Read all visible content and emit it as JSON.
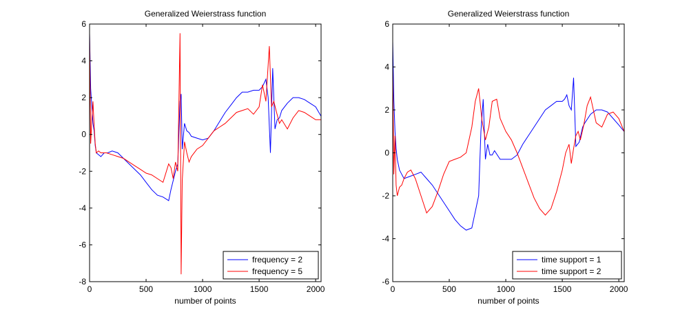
{
  "chart_data": [
    {
      "type": "line",
      "title": "Generalized Weierstrass function",
      "xlabel": "number of points",
      "ylabel": "",
      "xlim": [
        0,
        2048
      ],
      "ylim": [
        -8,
        6
      ],
      "xticks": [
        "0",
        "500",
        "1000",
        "1500",
        "2000"
      ],
      "yticks": [
        "6",
        "4",
        "2",
        "0",
        "-2",
        "-4",
        "-6",
        "-8"
      ],
      "legend": "bottom-right",
      "grid": false,
      "series": [
        {
          "name": "frequency = 2",
          "color": "#0000ff",
          "x": [
            0,
            10,
            20,
            30,
            40,
            50,
            60,
            80,
            100,
            130,
            160,
            200,
            250,
            300,
            350,
            400,
            450,
            500,
            550,
            600,
            650,
            700,
            720,
            740,
            760,
            780,
            800,
            810,
            820,
            840,
            860,
            880,
            900,
            950,
            1000,
            1050,
            1100,
            1150,
            1200,
            1250,
            1300,
            1350,
            1400,
            1450,
            1500,
            1530,
            1560,
            1580,
            1600,
            1620,
            1640,
            1660,
            1680,
            1700,
            1750,
            1800,
            1850,
            1900,
            1950,
            2000,
            2047
          ],
          "y": [
            5.5,
            2.5,
            1.5,
            0.6,
            0.2,
            -0.6,
            -1.0,
            -1.1,
            -1.2,
            -1.0,
            -1.0,
            -0.9,
            -1.0,
            -1.3,
            -1.6,
            -1.9,
            -2.2,
            -2.6,
            -3.0,
            -3.3,
            -3.4,
            -3.6,
            -3.0,
            -2.5,
            -2.0,
            -1.6,
            1.8,
            2.2,
            -0.8,
            0.6,
            0.2,
            0.1,
            -0.1,
            -0.2,
            -0.3,
            -0.2,
            0.2,
            0.7,
            1.2,
            1.6,
            2.0,
            2.3,
            2.3,
            2.4,
            2.4,
            2.6,
            3.0,
            2.0,
            -1.0,
            3.6,
            0.3,
            0.8,
            0.9,
            1.3,
            1.7,
            2.0,
            2.0,
            1.9,
            1.7,
            1.5,
            1.0
          ]
        },
        {
          "name": "frequency = 5",
          "color": "#ff0000",
          "x": [
            0,
            10,
            20,
            30,
            40,
            50,
            60,
            80,
            100,
            150,
            200,
            250,
            300,
            350,
            400,
            450,
            500,
            550,
            600,
            650,
            700,
            720,
            740,
            760,
            780,
            800,
            810,
            820,
            840,
            860,
            880,
            900,
            950,
            1000,
            1050,
            1100,
            1150,
            1200,
            1250,
            1300,
            1350,
            1400,
            1450,
            1500,
            1530,
            1560,
            1590,
            1610,
            1630,
            1650,
            1680,
            1700,
            1750,
            1800,
            1850,
            1900,
            1950,
            2000,
            2047
          ],
          "y": [
            5.5,
            -0.5,
            0.8,
            1.8,
            0.5,
            -0.5,
            -1.0,
            -0.9,
            -1.0,
            -1.0,
            -1.1,
            -1.2,
            -1.3,
            -1.5,
            -1.7,
            -1.9,
            -2.1,
            -2.2,
            -2.4,
            -2.6,
            -1.6,
            -1.8,
            -2.4,
            -1.5,
            -2.0,
            5.5,
            -7.6,
            -2.5,
            -0.4,
            -1.0,
            -1.5,
            -1.2,
            -0.8,
            -0.6,
            -0.2,
            0.2,
            0.4,
            0.6,
            0.9,
            1.2,
            1.3,
            1.4,
            1.1,
            1.5,
            2.7,
            1.8,
            4.8,
            1.5,
            1.8,
            1.3,
            0.6,
            0.8,
            0.3,
            0.9,
            1.3,
            1.2,
            1.0,
            0.8,
            0.8
          ]
        }
      ]
    },
    {
      "type": "line",
      "title": "Generalized Weierstrass function",
      "xlabel": "number of points",
      "ylabel": "",
      "xlim": [
        0,
        2048
      ],
      "ylim": [
        -6,
        6
      ],
      "xticks": [
        "0",
        "500",
        "1000",
        "1500",
        "2000"
      ],
      "yticks": [
        "6",
        "4",
        "2",
        "0",
        "-2",
        "-4",
        "-6"
      ],
      "legend": "bottom-right",
      "grid": false,
      "series": [
        {
          "name": "time support = 1",
          "color": "#0000ff",
          "x": [
            0,
            10,
            20,
            30,
            40,
            60,
            80,
            100,
            150,
            200,
            250,
            300,
            350,
            400,
            450,
            500,
            550,
            600,
            650,
            700,
            720,
            740,
            760,
            780,
            800,
            820,
            840,
            860,
            880,
            900,
            950,
            1000,
            1050,
            1100,
            1150,
            1200,
            1250,
            1300,
            1350,
            1400,
            1450,
            1500,
            1520,
            1540,
            1560,
            1580,
            1600,
            1620,
            1650,
            1680,
            1700,
            1750,
            1800,
            1850,
            1900,
            1950,
            2000,
            2047
          ],
          "y": [
            5.2,
            2.5,
            1.0,
            0.2,
            -0.3,
            -0.8,
            -1.0,
            -1.2,
            -1.1,
            -1.0,
            -0.9,
            -1.2,
            -1.5,
            -1.9,
            -2.3,
            -2.7,
            -3.1,
            -3.4,
            -3.6,
            -3.5,
            -3.0,
            -2.5,
            -2.0,
            1.0,
            2.5,
            -0.3,
            0.4,
            -0.1,
            -0.1,
            0.1,
            -0.3,
            -0.3,
            -0.3,
            -0.1,
            0.4,
            0.8,
            1.2,
            1.6,
            2.0,
            2.2,
            2.4,
            2.4,
            2.5,
            2.7,
            2.2,
            2.0,
            3.5,
            0.3,
            0.5,
            1.2,
            1.4,
            1.8,
            2.0,
            2.0,
            1.9,
            1.6,
            1.3,
            1.0
          ]
        },
        {
          "name": "time support = 2",
          "color": "#ff0000",
          "x": [
            0,
            10,
            20,
            30,
            40,
            60,
            80,
            100,
            130,
            160,
            200,
            250,
            300,
            350,
            400,
            450,
            500,
            550,
            600,
            650,
            700,
            730,
            760,
            790,
            820,
            850,
            880,
            920,
            950,
            1000,
            1050,
            1100,
            1150,
            1200,
            1250,
            1300,
            1350,
            1400,
            1450,
            1500,
            1530,
            1560,
            1580,
            1600,
            1620,
            1640,
            1660,
            1690,
            1720,
            1750,
            1800,
            1850,
            1900,
            1950,
            2000,
            2047
          ],
          "y": [
            4.0,
            -1.0,
            0.8,
            -1.5,
            -2.0,
            -1.6,
            -1.5,
            -1.2,
            -0.9,
            -0.8,
            -1.2,
            -2.0,
            -2.8,
            -2.5,
            -1.8,
            -1.0,
            -0.4,
            -0.3,
            -0.2,
            0.0,
            1.2,
            2.4,
            3.0,
            1.5,
            0.6,
            1.2,
            2.4,
            2.5,
            1.6,
            1.0,
            0.6,
            0.0,
            -0.7,
            -1.4,
            -2.1,
            -2.6,
            -2.9,
            -2.6,
            -1.8,
            -0.8,
            0.0,
            0.4,
            -0.5,
            0.2,
            0.8,
            1.0,
            0.6,
            1.3,
            2.2,
            2.6,
            1.4,
            1.2,
            1.8,
            1.9,
            1.6,
            1.0
          ]
        }
      ]
    }
  ]
}
